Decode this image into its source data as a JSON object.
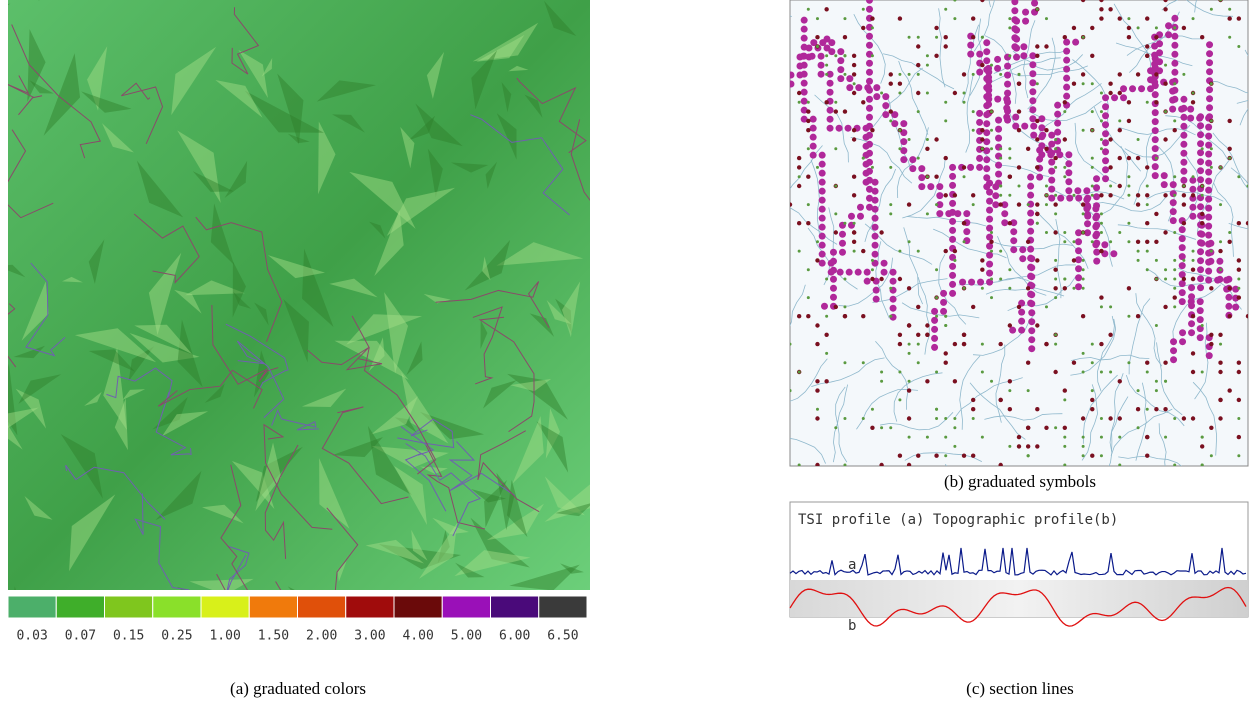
{
  "panels": [
    {
      "caption": "(a) graduated colors",
      "legend": [
        {
          "label": "0.03",
          "color": "#4caf6a"
        },
        {
          "label": "0.07",
          "color": "#3fae2a"
        },
        {
          "label": "0.15",
          "color": "#7fc61e"
        },
        {
          "label": "0.25",
          "color": "#8ae02a"
        },
        {
          "label": "1.00",
          "color": "#d8f01a"
        },
        {
          "label": "1.50",
          "color": "#f07a0c"
        },
        {
          "label": "2.00",
          "color": "#e0500a"
        },
        {
          "label": "3.00",
          "color": "#a00c0c"
        },
        {
          "label": "4.00",
          "color": "#6a0a0a"
        },
        {
          "label": "5.00",
          "color": "#9a10b8"
        },
        {
          "label": "6.00",
          "color": "#4a0a7a"
        },
        {
          "label": "6.50",
          "color": "#3a3a3a"
        }
      ]
    },
    {
      "caption": "(b) graduated symbols"
    },
    {
      "caption": "(c)    section lines",
      "profile_title": "TSI profile (a)  Topographic profile(b)",
      "line_labels": [
        "a",
        "b"
      ]
    }
  ]
}
